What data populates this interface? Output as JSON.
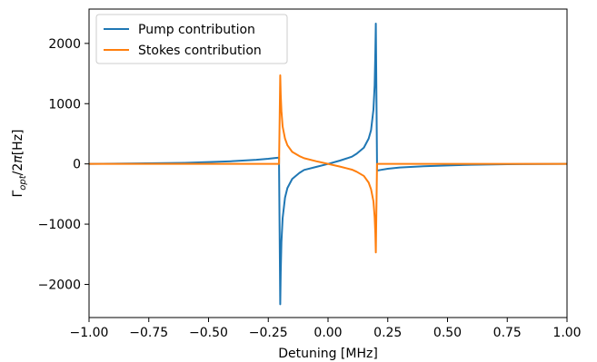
{
  "chart_data": {
    "type": "line",
    "title": "",
    "xlabel": "Detuning [MHz]",
    "ylabel_parts": {
      "gamma": "Γ",
      "subscript": "opt",
      "slash": "/2",
      "pi": "π",
      "units": "[Hz]"
    },
    "xlim": [
      -1.0,
      1.0
    ],
    "ylim": [
      -2550,
      2570
    ],
    "x_ticks": [
      -1.0,
      -0.75,
      -0.5,
      -0.25,
      0.0,
      0.25,
      0.5,
      0.75,
      1.0
    ],
    "x_tick_labels": [
      "−1.00",
      "−0.75",
      "−0.50",
      "−0.25",
      "0.00",
      "0.25",
      "0.50",
      "0.75",
      "1.00"
    ],
    "y_ticks": [
      -2000,
      -1000,
      0,
      1000,
      2000
    ],
    "y_tick_labels": [
      "−2000",
      "−1000",
      "0",
      "1000",
      "2000"
    ],
    "grid": false,
    "legend_position": "top-left",
    "series": [
      {
        "name": "Pump contribution",
        "color": "#1f77b4",
        "x": [
          -1.0,
          -0.8,
          -0.6,
          -0.5,
          -0.4,
          -0.3,
          -0.25,
          -0.22,
          -0.205,
          -0.205,
          -0.2,
          -0.198,
          -0.195,
          -0.19,
          -0.18,
          -0.17,
          -0.15,
          -0.12,
          -0.1,
          -0.05,
          0.0,
          0.05,
          0.1,
          0.12,
          0.15,
          0.17,
          0.18,
          0.19,
          0.195,
          0.198,
          0.2,
          0.205,
          0.205,
          0.22,
          0.25,
          0.3,
          0.4,
          0.5,
          0.6,
          0.75,
          0.8,
          1.0
        ],
        "y": [
          0,
          8,
          18,
          30,
          45,
          68,
          85,
          98,
          105,
          0,
          -2330,
          -1800,
          -1300,
          -900,
          -560,
          -400,
          -250,
          -150,
          -100,
          -50,
          0,
          55,
          120,
          170,
          270,
          420,
          560,
          900,
          1300,
          1850,
          2330,
          0,
          -110,
          -100,
          -80,
          -60,
          -38,
          -25,
          -14,
          -5,
          -3,
          0
        ]
      },
      {
        "name": "Stokes contribution",
        "color": "#ff7f0e",
        "x": [
          -1.0,
          -0.5,
          -0.3,
          -0.22,
          -0.205,
          -0.205,
          -0.2,
          -0.198,
          -0.195,
          -0.19,
          -0.18,
          -0.17,
          -0.15,
          -0.12,
          -0.1,
          -0.05,
          0.0,
          0.05,
          0.1,
          0.12,
          0.15,
          0.17,
          0.18,
          0.19,
          0.195,
          0.198,
          0.2,
          0.205,
          0.205,
          0.22,
          0.5,
          1.0
        ],
        "y": [
          0,
          0,
          0,
          0,
          0,
          0,
          1470,
          1150,
          880,
          620,
          420,
          310,
          200,
          130,
          95,
          45,
          0,
          -45,
          -95,
          -130,
          -200,
          -310,
          -420,
          -620,
          -880,
          -1150,
          -1470,
          0,
          0,
          0,
          0,
          0
        ]
      }
    ]
  }
}
